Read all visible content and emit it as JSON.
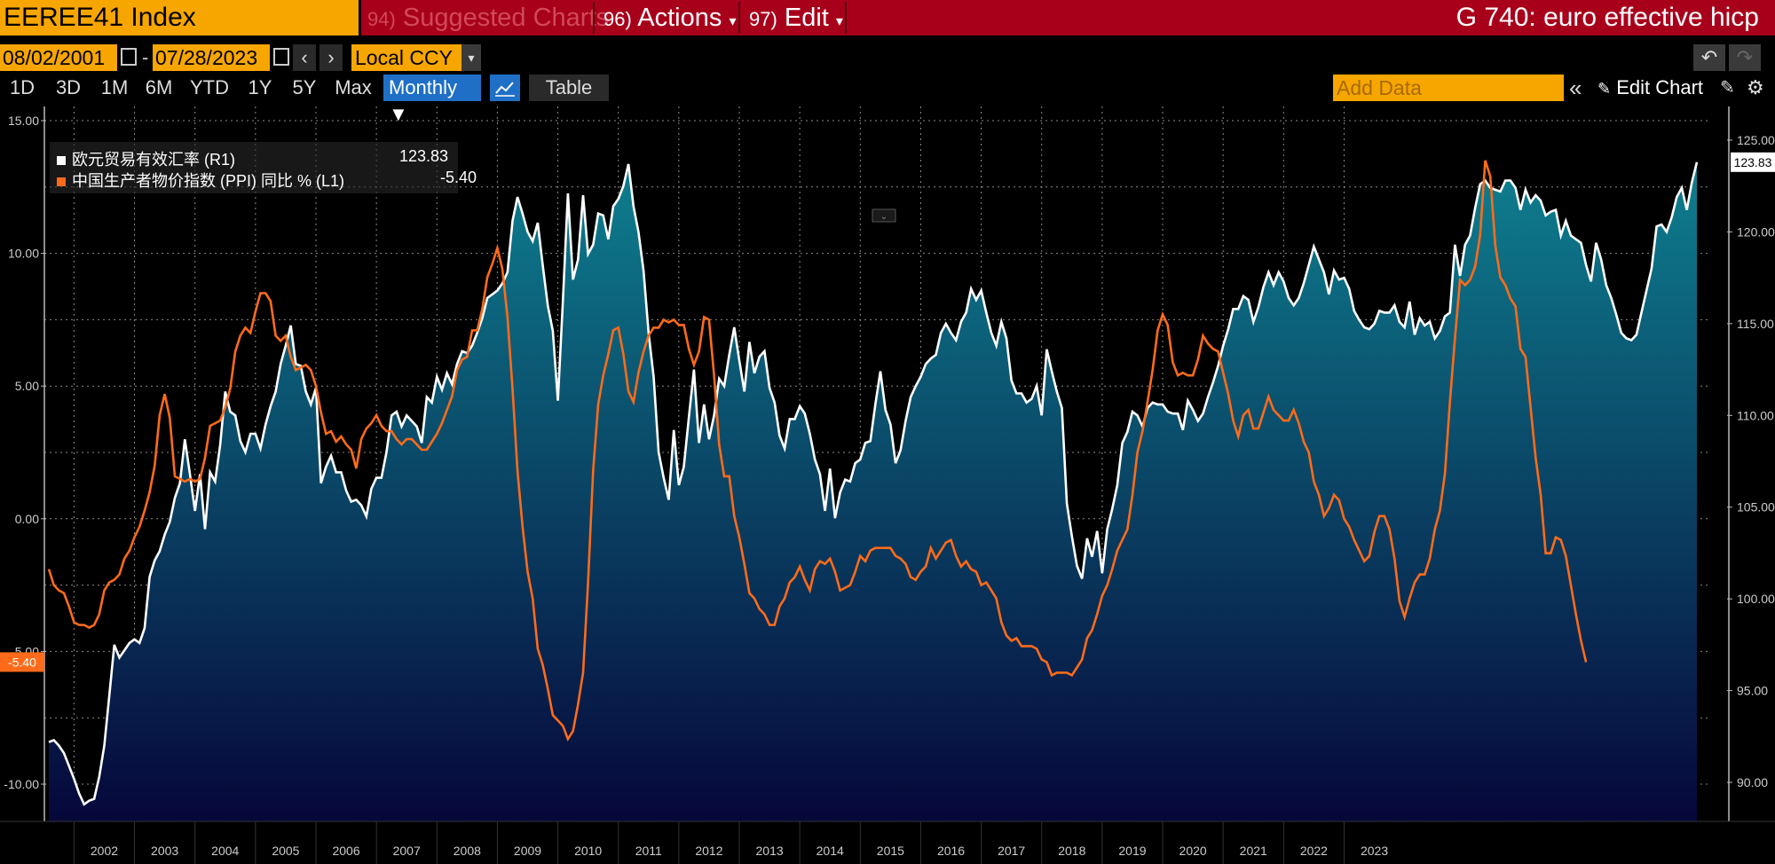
{
  "header": {
    "ticker": "EEREE41 Index",
    "suggested": {
      "num": "94)",
      "label": "Suggested Charts"
    },
    "actions": {
      "num": "96)",
      "label": "Actions",
      "arrow": "▾"
    },
    "edit": {
      "num": "97)",
      "label": "Edit",
      "arrow": "▾"
    },
    "title": "G 740: euro effective hicp"
  },
  "controls": {
    "start_date": "08/02/2001",
    "end_date": "07/28/2023",
    "dash": "-",
    "prev": "‹",
    "next": "›",
    "currency": "Local CCY",
    "dropdown_arrow": "▾",
    "periods": [
      "1D",
      "3D",
      "1M",
      "6M",
      "YTD",
      "1Y",
      "5Y",
      "Max"
    ],
    "frequency": "Monthly ▼",
    "table_label": "Table",
    "add_data_placeholder": "Add Data",
    "collapse": "«",
    "edit_chart_label": "Edit Chart",
    "undo": "↶",
    "redo": "↷"
  },
  "legend": {
    "s1_label": "欧元贸易有效汇率 (R1)",
    "s1_value": "123.83",
    "s2_label": "中国生产者物价指数 (PPI) 同比 % (L1)",
    "s2_value": "-5.40"
  },
  "chart_data": {
    "type": "line",
    "x_start": "2001-08",
    "x_end": "2023-07",
    "frequency": "monthly",
    "x_ticks": [
      "2002",
      "2003",
      "2004",
      "2005",
      "2006",
      "2007",
      "2008",
      "2009",
      "2010",
      "2011",
      "2012",
      "2013",
      "2014",
      "2015",
      "2016",
      "2017",
      "2018",
      "2019",
      "2020",
      "2021",
      "2022",
      "2023"
    ],
    "left_axis": {
      "ticks": [
        "15.00",
        "10.00",
        "5.00",
        "0.00",
        "-5.00",
        "-10.00"
      ],
      "ylim": [
        -10,
        15
      ]
    },
    "right_axis": {
      "ticks": [
        "125.00",
        "120.00",
        "115.00",
        "110.00",
        "105.00",
        "100.00",
        "95.00",
        "90.00"
      ],
      "ylim": [
        87,
        128
      ]
    },
    "last_value_labels": {
      "left": "-5.40",
      "right": "123.83"
    },
    "colors": {
      "s1": "#ffffff",
      "s2": "#ff6b1a",
      "area_top": "#0e7f8f",
      "area_bottom": "#06073a",
      "left_tag": "#ff6b1a",
      "right_tag": "#ffffff"
    },
    "series": [
      {
        "name": "欧元贸易有效汇率 (R1)",
        "axis": "right",
        "values": [
          92.2,
          92.3,
          92.0,
          91.6,
          90.9,
          90.2,
          89.4,
          88.8,
          89.0,
          89.1,
          90.3,
          92.0,
          94.7,
          97.5,
          96.8,
          97.2,
          97.6,
          97.8,
          97.6,
          98.4,
          101.2,
          102.1,
          102.6,
          103.5,
          104.2,
          105.5,
          106.3,
          108.7,
          106.8,
          104.8,
          106.8,
          103.8,
          106.9,
          106.4,
          108.4,
          111.3,
          110.2,
          110.0,
          108.6,
          108.0,
          109.0,
          109.0,
          108.2,
          109.5,
          110.5,
          111.3,
          112.8,
          113.8,
          114.9,
          112.8,
          112.7,
          111.3,
          110.6,
          111.5,
          106.3,
          107.2,
          107.8,
          106.9,
          106.9,
          105.9,
          105.3,
          105.4,
          105.1,
          104.5,
          106.0,
          106.6,
          106.6,
          108.0,
          110.0,
          110.2,
          109.4,
          110.0,
          109.7,
          109.4,
          108.5,
          111.0,
          110.7,
          112.1,
          111.4,
          112.3,
          111.7,
          112.8,
          113.5,
          113.4,
          113.8,
          114.5,
          115.3,
          116.4,
          116.6,
          116.8,
          117.2,
          117.8,
          120.6,
          121.9,
          121.0,
          120.0,
          119.5,
          120.5,
          118.2,
          116.0,
          114.6,
          110.8,
          116.2,
          122.1,
          117.4,
          118.5,
          122.0,
          118.8,
          119.3,
          121.0,
          120.9,
          119.6,
          121.4,
          121.8,
          122.5,
          123.7,
          121.4,
          120.0,
          117.9,
          114.5,
          112.1,
          108.0,
          106.6,
          105.4,
          109.2,
          106.2,
          107.2,
          109.9,
          112.5,
          108.5,
          110.6,
          108.7,
          110.0,
          112.0,
          111.6,
          113.3,
          114.8,
          113.0,
          111.3,
          114.0,
          112.3,
          113.2,
          113.5,
          111.5,
          110.7,
          108.9,
          108.2,
          109.8,
          109.8,
          110.5,
          110.1,
          109.0,
          107.6,
          106.8,
          104.8,
          107.1,
          104.4,
          105.8,
          106.5,
          106.4,
          107.4,
          107.6,
          108.5,
          108.6,
          110.6,
          112.4,
          110.3,
          109.5,
          107.4,
          108.1,
          109.7,
          111.0,
          111.6,
          112.1,
          112.8,
          113.1,
          113.3,
          114.5,
          115.0,
          114.5,
          114.1,
          115.1,
          115.6,
          116.9,
          116.3,
          116.8,
          115.6,
          114.5,
          113.8,
          115.1,
          114.2,
          111.9,
          111.2,
          111.2,
          110.7,
          110.9,
          111.6,
          110.0,
          113.6,
          112.4,
          111.3,
          110.4,
          105.2,
          103.4,
          101.8,
          101.1,
          103.3,
          102.3,
          103.7,
          101.4,
          103.8,
          104.9,
          106.2,
          108.5,
          109.1,
          110.2,
          110.0,
          109.4,
          110.4,
          110.7,
          110.6,
          110.6,
          110.2,
          110.1,
          110.1,
          109.2,
          110.8,
          110.3,
          109.7,
          110.1,
          111.0,
          111.8,
          112.7,
          113.8,
          114.7,
          115.8,
          115.8,
          116.5,
          116.3,
          115.1,
          115.9,
          117.0,
          117.8,
          117.1,
          117.8,
          117.3,
          116.4,
          116.0,
          116.4,
          117.2,
          118.2,
          119.2,
          118.5,
          117.8,
          116.6,
          117.9,
          117.4,
          117.5,
          116.9,
          115.7,
          115.2,
          114.8,
          114.7,
          115.0,
          115.7,
          115.6,
          115.6,
          116.0,
          115.1,
          114.8,
          116.2,
          114.4,
          115.3,
          114.9,
          115.1,
          114.2,
          114.6,
          115.4,
          115.6,
          119.3,
          117.6,
          119.3,
          119.8,
          121.3,
          122.6,
          122.8,
          122.4,
          122.3,
          122.2,
          122.8,
          122.8,
          122.4,
          121.2,
          122.3,
          121.6,
          122.0,
          121.7,
          120.9,
          121.1,
          121.2,
          119.8,
          120.6,
          119.8,
          119.6,
          119.4,
          118.2,
          117.3,
          119.4,
          118.5,
          117.1,
          116.4,
          115.5,
          114.5,
          114.2,
          114.1,
          114.4,
          115.6,
          116.8,
          118.0,
          120.3,
          120.4,
          120.0,
          120.8,
          121.9,
          122.4,
          121.2,
          122.7,
          123.8
        ]
      },
      {
        "name": "中国生产者物价指数 (PPI) 同比 % (L1)",
        "axis": "left",
        "values": [
          -1.9,
          -2.5,
          -2.7,
          -2.8,
          -3.3,
          -3.9,
          -4.0,
          -4.0,
          -4.1,
          -4.0,
          -3.6,
          -2.7,
          -2.4,
          -2.3,
          -2.1,
          -1.5,
          -1.2,
          -0.7,
          -0.3,
          0.3,
          1.0,
          2.0,
          3.9,
          4.7,
          3.8,
          1.6,
          1.5,
          1.4,
          1.5,
          1.4,
          1.5,
          2.3,
          3.5,
          3.6,
          3.7,
          4.2,
          4.9,
          6.3,
          6.9,
          7.2,
          7.0,
          7.8,
          8.5,
          8.5,
          8.2,
          6.9,
          6.7,
          6.9,
          6.1,
          5.6,
          5.7,
          5.8,
          5.6,
          5.0,
          4.0,
          3.2,
          3.3,
          2.9,
          3.1,
          2.8,
          2.6,
          1.9,
          3.0,
          3.4,
          3.6,
          3.9,
          3.5,
          3.3,
          3.3,
          3.0,
          2.8,
          3.0,
          3.0,
          2.8,
          2.6,
          2.6,
          2.9,
          3.2,
          3.6,
          4.1,
          4.6,
          5.6,
          6.0,
          6.1,
          7.1,
          7.1,
          7.9,
          9.1,
          9.6,
          10.2,
          9.4,
          7.6,
          4.9,
          1.8,
          -0.3,
          -2.0,
          -3.0,
          -4.9,
          -5.5,
          -6.4,
          -7.4,
          -7.6,
          -7.8,
          -8.3,
          -8.0,
          -7.0,
          -5.8,
          -2.4,
          1.8,
          4.3,
          5.4,
          6.2,
          7.1,
          7.2,
          6.2,
          4.8,
          4.4,
          5.5,
          6.3,
          6.9,
          7.2,
          7.2,
          7.5,
          7.4,
          7.5,
          7.3,
          7.3,
          6.4,
          5.8,
          6.3,
          7.6,
          7.5,
          5.4,
          2.8,
          1.6,
          1.6,
          0.1,
          -0.7,
          -1.7,
          -2.8,
          -3.0,
          -3.4,
          -3.6,
          -4.0,
          -4.0,
          -3.3,
          -3.0,
          -2.4,
          -2.2,
          -1.8,
          -2.3,
          -2.7,
          -1.9,
          -1.6,
          -1.7,
          -1.5,
          -2.0,
          -2.7,
          -2.6,
          -2.5,
          -2.0,
          -1.4,
          -1.6,
          -1.2,
          -1.1,
          -1.1,
          -1.1,
          -1.1,
          -1.4,
          -1.5,
          -1.7,
          -2.2,
          -2.3,
          -2.0,
          -1.8,
          -1.1,
          -1.5,
          -1.2,
          -0.9,
          -0.8,
          -1.4,
          -1.8,
          -1.6,
          -1.9,
          -2.0,
          -2.5,
          -2.4,
          -2.7,
          -3.0,
          -3.9,
          -4.4,
          -4.6,
          -4.5,
          -4.8,
          -4.8,
          -4.8,
          -4.9,
          -5.3,
          -5.4,
          -5.9,
          -5.8,
          -5.8,
          -5.8,
          -5.9,
          -5.6,
          -5.3,
          -4.5,
          -4.2,
          -3.6,
          -2.9,
          -2.5,
          -1.9,
          -1.2,
          -0.8,
          -0.4,
          0.9,
          2.5,
          3.3,
          4.4,
          5.6,
          7.1,
          7.7,
          7.3,
          5.9,
          5.4,
          5.5,
          5.4,
          5.4,
          6.0,
          6.9,
          6.6,
          6.4,
          6.3,
          5.5,
          4.7,
          3.7,
          3.1,
          3.9,
          4.1,
          3.4,
          3.4,
          4.0,
          4.6,
          4.1,
          3.9,
          3.7,
          3.7,
          4.1,
          3.6,
          2.9,
          2.5,
          1.4,
          0.9,
          0.1,
          0.4,
          0.9,
          0.7,
          0.0,
          -0.3,
          -0.8,
          -1.2,
          -1.6,
          -1.4,
          -0.5,
          0.1,
          0.1,
          -0.4,
          -1.5,
          -3.1,
          -3.7,
          -3.0,
          -2.4,
          -2.1,
          -2.1,
          -1.5,
          -0.4,
          0.3,
          1.7,
          4.4,
          6.8,
          9.0,
          8.8,
          9.0,
          9.5,
          10.7,
          13.5,
          12.9,
          10.3,
          9.1,
          8.8,
          8.3,
          8.0,
          6.4,
          6.1,
          4.2,
          2.3,
          0.9,
          -1.3,
          -1.3,
          -0.7,
          -0.8,
          -1.4,
          -2.5,
          -3.6,
          -4.6,
          -5.4
        ]
      }
    ]
  }
}
